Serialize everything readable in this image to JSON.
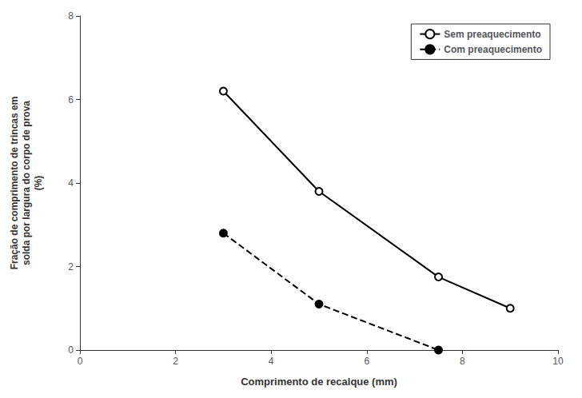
{
  "chart_data": {
    "type": "line",
    "xlabel": "Comprimento de recalque (mm)",
    "ylabel": "Fração de comprimento de trincas em\nsolda por largura do corpo de prova\n(%)",
    "series": [
      {
        "name": "Sem preaquecimento",
        "x": [
          3,
          5,
          7.5,
          9
        ],
        "values": [
          6.2,
          3.8,
          1.75,
          1.0
        ],
        "color": "#000000",
        "marker": "open_circle",
        "line_style": "solid"
      },
      {
        "name": "Com preaquecimento",
        "x": [
          3,
          5,
          7.5
        ],
        "values": [
          2.8,
          1.1,
          0.0
        ],
        "color": "#000000",
        "marker": "circle",
        "line_style": "dashed"
      }
    ],
    "xlim": [
      0,
      10
    ],
    "ylim": [
      0,
      8
    ],
    "xticks": [
      0,
      2,
      4,
      6,
      8,
      10
    ],
    "yticks": [
      0,
      2,
      4,
      6,
      8
    ],
    "grid": false,
    "legend": "upper right"
  }
}
